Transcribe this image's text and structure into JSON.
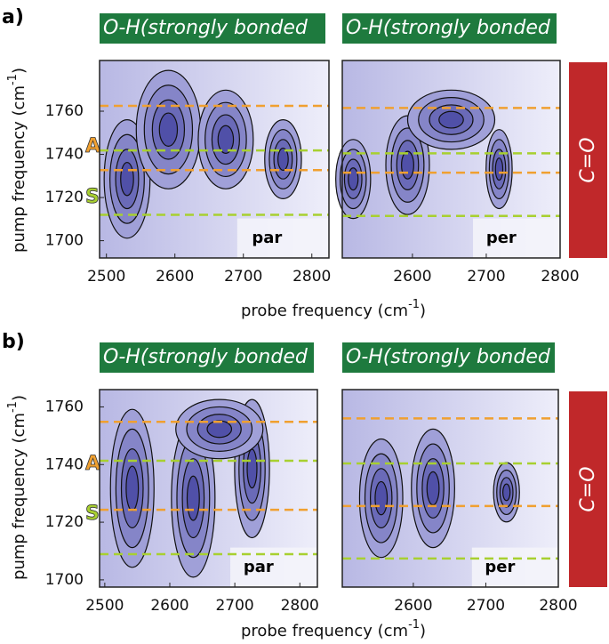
{
  "rows": [
    {
      "label": "a)",
      "side_label": "C=O",
      "ylabel": "pump frequency (cm",
      "ylabel_sup": "-1",
      "ylabel_end": ")",
      "xlabel": "probe frequency (cm",
      "xlabel_sup": "-1",
      "xlabel_end": ")",
      "markers": [
        "A",
        "S"
      ]
    },
    {
      "label": "b)",
      "side_label": "C=O",
      "ylabel": "pump frequency (cm",
      "ylabel_sup": "-1",
      "ylabel_end": ")",
      "xlabel": "probe frequency (cm",
      "xlabel_sup": "-1",
      "xlabel_end": ")",
      "markers": [
        "A",
        "S"
      ]
    }
  ],
  "chart_data": [
    {
      "type": "contour",
      "title": "O-H(strongly bonded",
      "tag": "par",
      "xlim": [
        2490,
        2825
      ],
      "ylim": [
        1692,
        1783.5
      ],
      "xticks": [
        2500,
        2600,
        2700,
        2800
      ],
      "yticks": [
        1700,
        1720,
        1740,
        1760
      ],
      "hlines": [
        {
          "value": 1762.5,
          "color": "#f0a030"
        },
        {
          "value": 1741.8,
          "color": "#a8d030"
        },
        {
          "value": 1732.7,
          "color": "#f0a030"
        },
        {
          "value": 1712,
          "color": "#a8d030"
        }
      ]
    },
    {
      "type": "contour",
      "title": "O-H(strongly bonded",
      "tag": "per",
      "xlim": [
        2505,
        2800
      ],
      "ylim": [
        1692,
        1783.5
      ],
      "xticks": [
        2600,
        2700,
        2800
      ],
      "hlines": [
        {
          "value": 1761.5,
          "color": "#f0a030"
        },
        {
          "value": 1740.5,
          "color": "#a8d030"
        },
        {
          "value": 1731.5,
          "color": "#f0a030"
        },
        {
          "value": 1711.5,
          "color": "#a8d030"
        }
      ]
    },
    {
      "type": "contour",
      "title": "O-H(strongly bonded",
      "tag": "par",
      "xlim": [
        2492,
        2827
      ],
      "ylim": [
        1697.5,
        1766
      ],
      "xticks": [
        2500,
        2600,
        2700,
        2800
      ],
      "yticks": [
        1700,
        1720,
        1740,
        1760
      ],
      "hlines": [
        {
          "value": 1754.8,
          "color": "#f0a030"
        },
        {
          "value": 1741.3,
          "color": "#a8d030"
        },
        {
          "value": 1724.3,
          "color": "#f0a030"
        },
        {
          "value": 1708.9,
          "color": "#a8d030"
        }
      ]
    },
    {
      "type": "contour",
      "title": "O-H(strongly bonded",
      "tag": "per",
      "xlim": [
        2502,
        2800
      ],
      "ylim": [
        1697.5,
        1766
      ],
      "xticks": [
        2600,
        2700,
        2800
      ],
      "hlines": [
        {
          "value": 1756,
          "color": "#f0a030"
        },
        {
          "value": 1740.4,
          "color": "#a8d030"
        },
        {
          "value": 1725.6,
          "color": "#f0a030"
        },
        {
          "value": 1707.4,
          "color": "#a8d030"
        }
      ]
    }
  ]
}
